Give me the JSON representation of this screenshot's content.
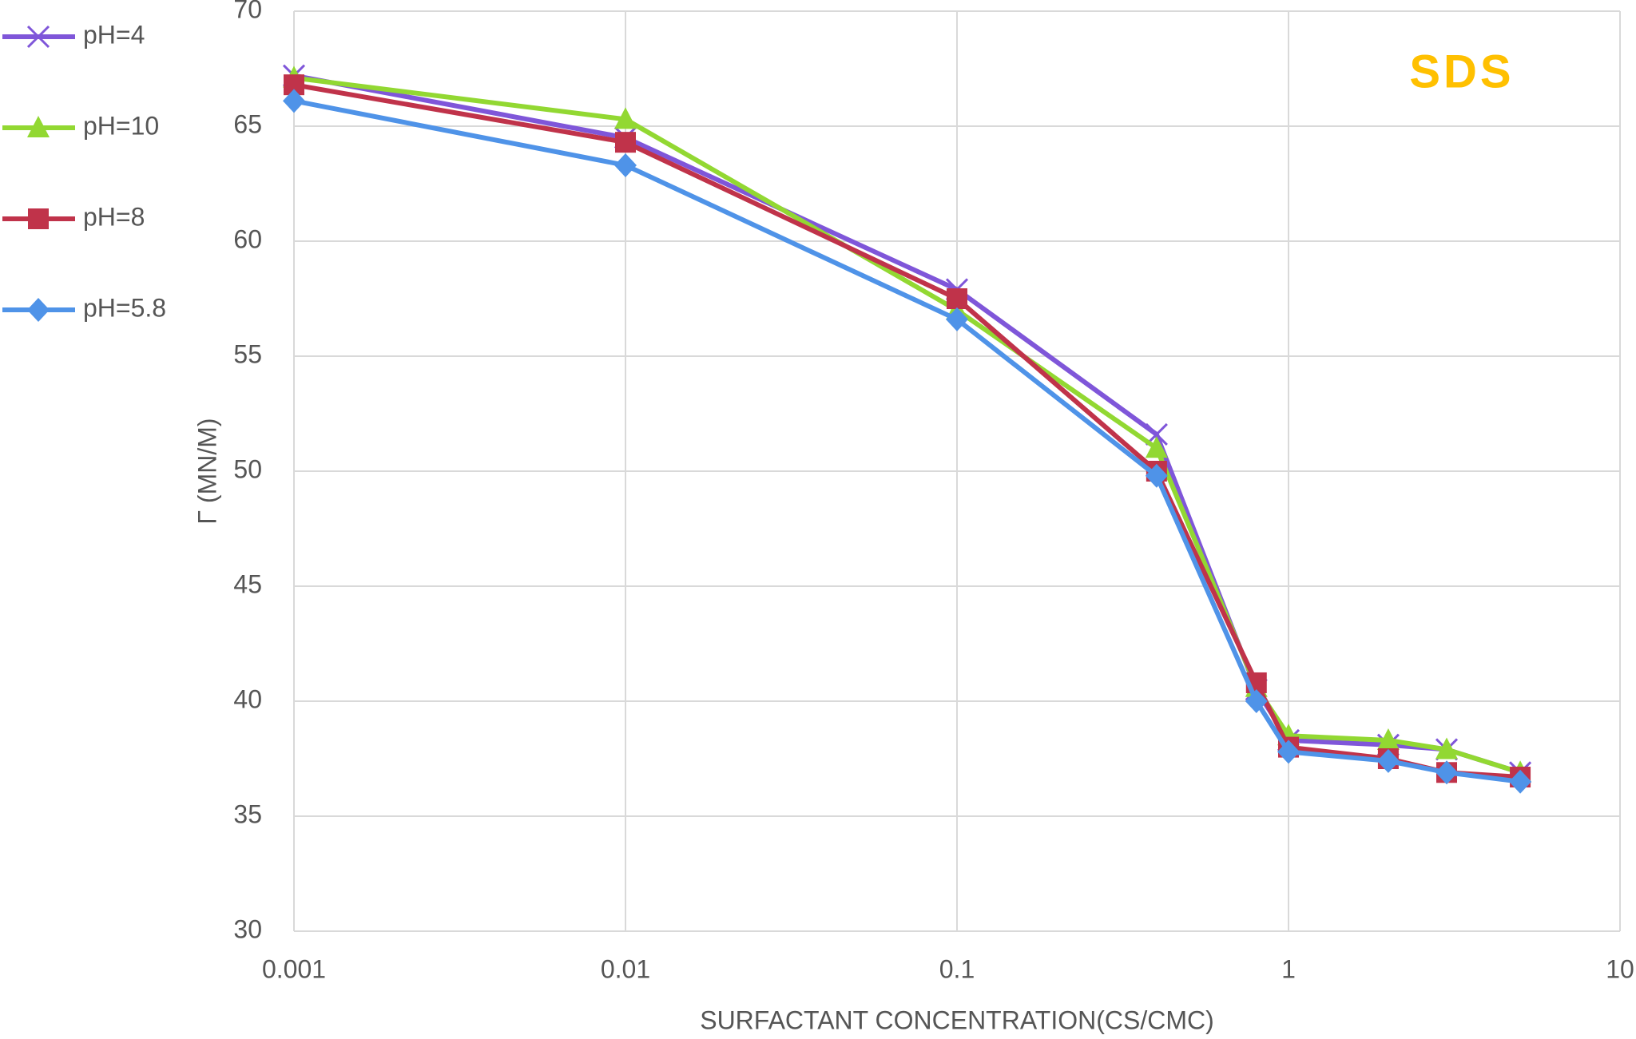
{
  "chart_data": {
    "type": "line",
    "annotation": "SDS",
    "annotation_color": "#ffc000",
    "x_label": "SURFACTANT CONCENTRATION(CS/CMC)",
    "y_label": "Γ (MN/M)",
    "x": [
      0.001,
      0.01,
      0.1,
      0.4,
      0.8,
      1,
      2,
      3,
      5
    ],
    "xscale": "log",
    "xlim": [
      0.001,
      10
    ],
    "xticks": [
      0.001,
      0.01,
      0.1,
      1,
      10
    ],
    "ylim": [
      30,
      70
    ],
    "yticks": [
      30,
      35,
      40,
      45,
      50,
      55,
      60,
      65,
      70
    ],
    "grid": true,
    "legend": "left",
    "series": [
      {
        "name": "pH=4",
        "color": "#7f56d9",
        "marker": "x",
        "values": [
          67.2,
          64.5,
          57.9,
          51.6,
          40.5,
          38.3,
          38.1,
          37.9,
          36.9
        ]
      },
      {
        "name": "pH=10",
        "color": "#92d832",
        "marker": "triangle",
        "values": [
          67.1,
          65.3,
          57.0,
          51.0,
          40.6,
          38.5,
          38.3,
          37.9,
          36.9
        ]
      },
      {
        "name": "pH=8",
        "color": "#c0334a",
        "marker": "square",
        "values": [
          66.8,
          64.3,
          57.5,
          50.0,
          40.8,
          38.0,
          37.5,
          36.9,
          36.7
        ]
      },
      {
        "name": "pH=5.8",
        "color": "#4f93e8",
        "marker": "diamond",
        "values": [
          66.1,
          63.3,
          56.6,
          49.8,
          40.0,
          37.8,
          37.4,
          36.9,
          36.5
        ]
      }
    ]
  }
}
